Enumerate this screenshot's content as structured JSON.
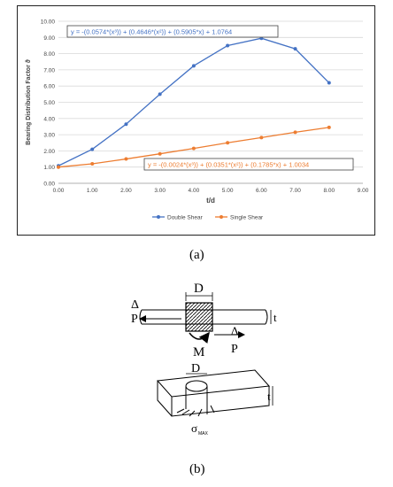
{
  "chart_data": {
    "type": "line",
    "ylabel": "Bearing Distribution Factor ϑ",
    "xlabel": "t/d",
    "xlim": [
      0,
      9
    ],
    "ylim": [
      0,
      10
    ],
    "xticks": [
      "0.00",
      "1.00",
      "2.00",
      "3.00",
      "4.00",
      "5.00",
      "6.00",
      "7.00",
      "8.00",
      "9.00"
    ],
    "yticks": [
      "0.00",
      "1.00",
      "2.00",
      "3.00",
      "4.00",
      "5.00",
      "6.00",
      "7.00",
      "8.00",
      "9.00",
      "10.00"
    ],
    "grid": "horizontal",
    "legend_position": "bottom",
    "series": [
      {
        "name": "Double Shear",
        "color": "#4472C4",
        "x": [
          0,
          1,
          2,
          3,
          4,
          5,
          6,
          7,
          8
        ],
        "y": [
          1.08,
          2.1,
          3.65,
          5.5,
          7.25,
          8.5,
          8.95,
          8.3,
          6.2
        ],
        "equation": "y = -(0.0574*(x³)) + (0.4646*(x²)) + (0.5905*x) + 1.0764"
      },
      {
        "name": "Single Shear",
        "color": "#ED7D31",
        "x": [
          0,
          1,
          2,
          3,
          4,
          5,
          6,
          7,
          8
        ],
        "y": [
          1.0,
          1.2,
          1.5,
          1.82,
          2.15,
          2.5,
          2.82,
          3.15,
          3.45
        ],
        "equation": "y = -(0.0024*(x³)) + (0.0351*(x²)) + (0.1785*x) + 1.0034"
      }
    ]
  },
  "captions": {
    "a": "(a)",
    "b": "(b)"
  },
  "diagram": {
    "labels": {
      "D": "D",
      "t": "t",
      "delta": "Δ",
      "P": "P",
      "M": "M",
      "sigma": "σ",
      "sigma_sub": "MAX"
    }
  }
}
